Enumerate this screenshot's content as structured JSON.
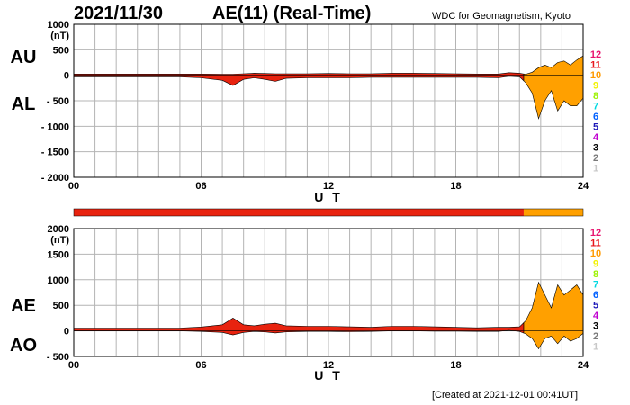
{
  "header": {
    "date": "2021/11/30",
    "title": "AE(11) (Real-Time)",
    "source": "WDC for Geomagnetism, Kyoto",
    "created": "[Created at 2021-12-01 00:41UT]"
  },
  "legend_levels": [
    {
      "label": "12",
      "color": "#e8156f"
    },
    {
      "label": "11",
      "color": "#e8151c"
    },
    {
      "label": "10",
      "color": "#ff9a00"
    },
    {
      "label": "9",
      "color": "#f2f200"
    },
    {
      "label": "8",
      "color": "#9cf200"
    },
    {
      "label": "7",
      "color": "#00d8e0"
    },
    {
      "label": "6",
      "color": "#0060ff"
    },
    {
      "label": "5",
      "color": "#1d18b8"
    },
    {
      "label": "4",
      "color": "#c000d0"
    },
    {
      "label": "3",
      "color": "#000000"
    },
    {
      "label": "2",
      "color": "#7a7a7a"
    },
    {
      "label": "1",
      "color": "#c8c8c8"
    }
  ],
  "chart_data": [
    {
      "type": "area",
      "series_labels": [
        "AU",
        "AL"
      ],
      "ylabel": "(nT)",
      "xlabel": "U T",
      "xlim": [
        0,
        24
      ],
      "ylim": [
        -2000,
        1000
      ],
      "yticks": [
        1000,
        500,
        0,
        -500,
        -1000,
        -1500,
        -2000
      ],
      "ytick_labels": [
        "1000",
        "500",
        "0",
        "- 500",
        "- 1000",
        "- 1500",
        "- 2000"
      ],
      "xticks": [
        0,
        6,
        12,
        18,
        24
      ],
      "xtick_labels": [
        "00",
        "06",
        "12",
        "18",
        "24"
      ],
      "grid": true,
      "activity_switch_hour": 21.2,
      "colors": {
        "low": "#e8230f",
        "high": "#ffa000"
      },
      "x": [
        0,
        1,
        2,
        3,
        4,
        5,
        6,
        7,
        7.5,
        8,
        8.5,
        9,
        9.5,
        10,
        11,
        12,
        13,
        14,
        15,
        16,
        17,
        18,
        19,
        20,
        20.5,
        21,
        21.3,
        21.6,
        21.9,
        22.2,
        22.5,
        22.8,
        23.1,
        23.4,
        23.7,
        24
      ],
      "upper": [
        25,
        25,
        25,
        25,
        25,
        25,
        25,
        20,
        20,
        30,
        40,
        35,
        30,
        30,
        30,
        35,
        30,
        30,
        40,
        40,
        35,
        30,
        25,
        25,
        50,
        40,
        20,
        60,
        150,
        200,
        150,
        250,
        280,
        200,
        300,
        380
      ],
      "lower": [
        -30,
        -30,
        -30,
        -30,
        -30,
        -30,
        -50,
        -100,
        -200,
        -80,
        -50,
        -80,
        -120,
        -60,
        -50,
        -50,
        -50,
        -40,
        -40,
        -40,
        -40,
        -40,
        -40,
        -50,
        -20,
        -30,
        -150,
        -350,
        -850,
        -500,
        -300,
        -700,
        -500,
        -600,
        -600,
        -450
      ]
    },
    {
      "type": "area",
      "series_labels": [
        "AE",
        "AO"
      ],
      "ylabel": "(nT)",
      "xlabel": "U T",
      "xlim": [
        0,
        24
      ],
      "ylim": [
        -500,
        2000
      ],
      "yticks": [
        2000,
        1500,
        1000,
        500,
        0,
        -500
      ],
      "ytick_labels": [
        "2000",
        "1500",
        "1000",
        "500",
        "0",
        "- 500"
      ],
      "xticks": [
        0,
        6,
        12,
        18,
        24
      ],
      "xtick_labels": [
        "00",
        "06",
        "12",
        "18",
        "24"
      ],
      "grid": true,
      "activity_switch_hour": 21.2,
      "colors": {
        "low": "#e8230f",
        "high": "#ffa000"
      },
      "x": [
        0,
        1,
        2,
        3,
        4,
        5,
        6,
        7,
        7.5,
        8,
        8.5,
        9,
        9.5,
        10,
        11,
        12,
        13,
        14,
        15,
        16,
        17,
        18,
        19,
        20,
        20.5,
        21,
        21.3,
        21.6,
        21.9,
        22.2,
        22.5,
        22.8,
        23.1,
        23.4,
        23.7,
        24
      ],
      "upper": [
        55,
        55,
        55,
        55,
        55,
        55,
        75,
        120,
        250,
        120,
        100,
        130,
        150,
        100,
        90,
        90,
        80,
        70,
        90,
        90,
        80,
        70,
        60,
        70,
        70,
        80,
        200,
        450,
        950,
        700,
        450,
        900,
        700,
        800,
        900,
        700
      ],
      "lower": [
        0,
        0,
        0,
        0,
        0,
        0,
        -10,
        -30,
        -80,
        -30,
        -10,
        -20,
        -40,
        -20,
        -10,
        -10,
        -15,
        -10,
        0,
        0,
        -5,
        -5,
        -10,
        -10,
        10,
        -10,
        -60,
        -150,
        -350,
        -150,
        -100,
        -250,
        -100,
        -200,
        -150,
        -50
      ]
    }
  ]
}
